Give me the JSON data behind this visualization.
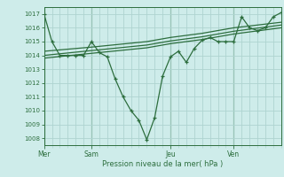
{
  "bg_color": "#ceecea",
  "grid_color": "#aed4d0",
  "line_color": "#2d6e3e",
  "xlabel": "Pression niveau de la mer( hPa )",
  "ylim": [
    1007.5,
    1017.5
  ],
  "yticks": [
    1008,
    1009,
    1010,
    1011,
    1012,
    1013,
    1014,
    1015,
    1016,
    1017
  ],
  "day_labels": [
    "Mer",
    "Sam",
    "Jeu",
    "Ven"
  ],
  "day_positions": [
    0,
    6,
    16,
    24
  ],
  "xmax": 30,
  "line1_x": [
    0,
    1,
    2,
    3,
    4,
    5,
    6,
    7,
    8,
    9,
    10,
    11,
    12,
    13,
    14,
    15,
    16,
    17,
    18,
    19,
    20,
    21,
    22,
    23,
    24,
    25,
    26,
    27,
    28,
    29,
    30
  ],
  "line1_y": [
    1017.0,
    1015.0,
    1014.0,
    1014.0,
    1014.0,
    1014.0,
    1015.0,
    1014.2,
    1013.9,
    1012.3,
    1011.0,
    1010.0,
    1009.3,
    1007.9,
    1009.5,
    1012.5,
    1013.9,
    1014.3,
    1013.5,
    1014.5,
    1015.1,
    1015.3,
    1015.0,
    1015.0,
    1015.0,
    1016.8,
    1016.0,
    1015.8,
    1016.0,
    1016.8,
    1017.1
  ],
  "line2_x": [
    0,
    6,
    13,
    16,
    20,
    24,
    30
  ],
  "line2_y": [
    1014.3,
    1014.6,
    1015.0,
    1015.3,
    1015.6,
    1016.0,
    1016.4
  ],
  "line3_x": [
    0,
    6,
    13,
    16,
    20,
    24,
    30
  ],
  "line3_y": [
    1014.0,
    1014.35,
    1014.75,
    1015.05,
    1015.35,
    1015.75,
    1016.2
  ],
  "line4_x": [
    0,
    6,
    13,
    16,
    20,
    24,
    30
  ],
  "line4_y": [
    1013.8,
    1014.15,
    1014.55,
    1014.85,
    1015.15,
    1015.55,
    1016.0
  ]
}
